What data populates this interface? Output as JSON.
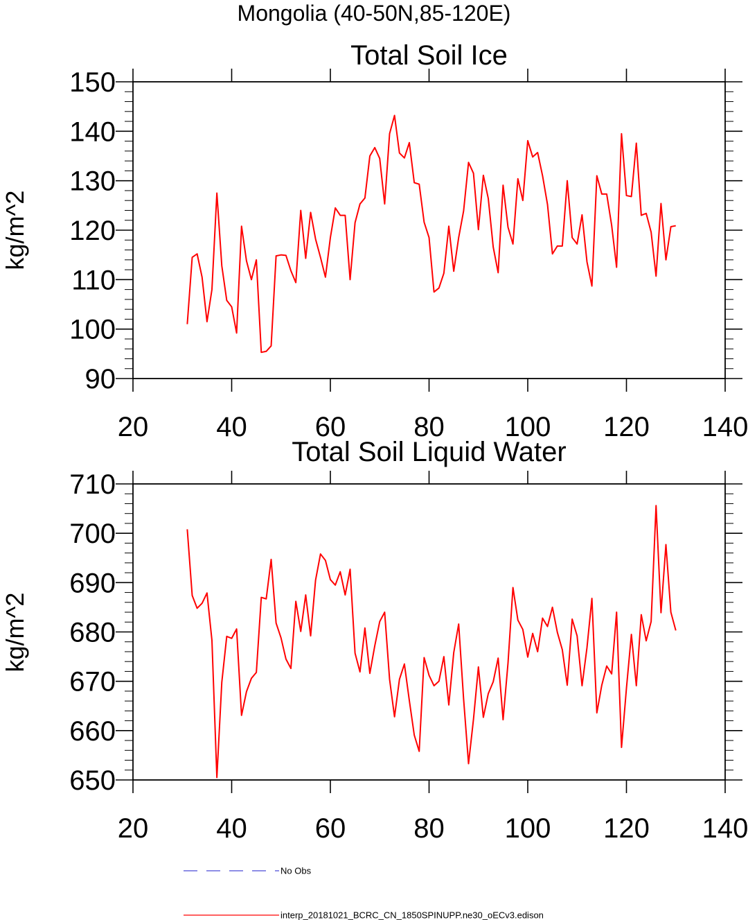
{
  "page_title": "Mongolia (40-50N,85-120E)",
  "legend": {
    "entries": [
      {
        "label": "No Obs",
        "color": "#4a4ad8",
        "dash": true
      },
      {
        "label": "interp_20181021_BCRC_CN_1850SPINUPP.ne30_oECv3.edison",
        "color": "#ff0000",
        "dash": false
      }
    ]
  },
  "chart_data": [
    {
      "type": "line",
      "title": "Total Soil Ice",
      "ylabel": "kg/m^2",
      "xlabel": "",
      "xlim": [
        20,
        140
      ],
      "ylim": [
        90,
        150
      ],
      "xticks": [
        20,
        40,
        60,
        80,
        100,
        120,
        140
      ],
      "yticks": [
        90,
        100,
        110,
        120,
        130,
        140,
        150
      ],
      "grid": false,
      "series": [
        {
          "color": "#ff0000",
          "x": [
            31,
            32,
            33,
            34,
            35,
            36,
            37,
            38,
            39,
            40,
            41,
            42,
            43,
            44,
            45,
            46,
            47,
            48,
            49,
            50,
            51,
            52,
            53,
            54,
            55,
            56,
            57,
            58,
            59,
            60,
            61,
            62,
            63,
            64,
            65,
            66,
            67,
            68,
            69,
            70,
            71,
            72,
            73,
            74,
            75,
            76,
            77,
            78,
            79,
            80,
            81,
            82,
            83,
            84,
            85,
            86,
            87,
            88,
            89,
            90,
            91,
            92,
            93,
            94,
            95,
            96,
            97,
            98,
            99,
            100,
            101,
            102,
            103,
            104,
            105,
            106,
            107,
            108,
            109,
            110,
            111,
            112,
            113,
            114,
            115,
            116,
            117,
            118,
            119,
            120,
            121,
            122,
            123,
            124,
            125,
            126,
            127,
            128,
            129,
            130
          ],
          "values": [
            101,
            114.5,
            115.2,
            110.5,
            101.5,
            108,
            127.5,
            112.8,
            105.8,
            104.5,
            99.2,
            120.8,
            113.8,
            110,
            114,
            95.3,
            95.5,
            96.6,
            114.8,
            115,
            114.9,
            111.8,
            109.4,
            124,
            114.3,
            123.6,
            118.2,
            114.5,
            110.5,
            118.5,
            124.5,
            123,
            123,
            110,
            121.5,
            125.3,
            126.5,
            135,
            136.7,
            134.5,
            125.3,
            139.5,
            143.2,
            135.6,
            134.6,
            137.7,
            129.6,
            129.3,
            121.6,
            118.5,
            107.5,
            108.3,
            111.3,
            120.8,
            111.7,
            118.5,
            123.9,
            133.7,
            131.5,
            120.1,
            131.1,
            126.4,
            116.6,
            111.4,
            129.1,
            120.6,
            117.2,
            130.4,
            126,
            138.1,
            134.8,
            135.7,
            131,
            125.2,
            115.2,
            116.8,
            116.8,
            130,
            118.5,
            117.2,
            123.1,
            113.6,
            108.7,
            131,
            127.3,
            127.3,
            121,
            112.5,
            139.5,
            127,
            126.8,
            137.6,
            123,
            123.4,
            119.6,
            110.7,
            125.4,
            114,
            120.7,
            120.9
          ]
        }
      ]
    },
    {
      "type": "line",
      "title": "Total Soil Liquid Water",
      "ylabel": "kg/m^2",
      "xlabel": "",
      "xlim": [
        20,
        140
      ],
      "ylim": [
        650,
        710
      ],
      "xticks": [
        20,
        40,
        60,
        80,
        100,
        120,
        140
      ],
      "yticks": [
        650,
        660,
        670,
        680,
        690,
        700,
        710
      ],
      "grid": false,
      "series": [
        {
          "color": "#ff0000",
          "x": [
            31,
            32,
            33,
            34,
            35,
            36,
            37,
            38,
            39,
            40,
            41,
            42,
            43,
            44,
            45,
            46,
            47,
            48,
            49,
            50,
            51,
            52,
            53,
            54,
            55,
            56,
            57,
            58,
            59,
            60,
            61,
            62,
            63,
            64,
            65,
            66,
            67,
            68,
            69,
            70,
            71,
            72,
            73,
            74,
            75,
            76,
            77,
            78,
            79,
            80,
            81,
            82,
            83,
            84,
            85,
            86,
            87,
            88,
            89,
            90,
            91,
            92,
            93,
            94,
            95,
            96,
            97,
            98,
            99,
            100,
            101,
            102,
            103,
            104,
            105,
            106,
            107,
            108,
            109,
            110,
            111,
            112,
            113,
            114,
            115,
            116,
            117,
            118,
            119,
            120,
            121,
            122,
            123,
            124,
            125,
            126,
            127,
            128,
            129,
            130
          ],
          "values": [
            700.8,
            687.4,
            684.8,
            685.8,
            687.9,
            678.3,
            650.5,
            669.8,
            679.1,
            678.7,
            680.6,
            663.1,
            667.9,
            670.6,
            671.8,
            687,
            686.7,
            694.7,
            681.8,
            678.8,
            674.5,
            672.6,
            686.2,
            680.1,
            687.5,
            679.2,
            690.5,
            695.8,
            694.5,
            690.6,
            689.5,
            692.2,
            687.5,
            692.7,
            675.7,
            671.9,
            680.8,
            671.6,
            677.2,
            682.1,
            684,
            670.4,
            662.8,
            670.4,
            673.5,
            666.1,
            659.1,
            655.8,
            674.8,
            671.2,
            669.1,
            670,
            675,
            665.2,
            675.8,
            681.6,
            666.4,
            653.3,
            662.3,
            672.9,
            662.7,
            667.5,
            669.9,
            674.7,
            662.2,
            673.7,
            689,
            682.4,
            680.5,
            674.9,
            679.7,
            676,
            682.8,
            681.1,
            685,
            679.9,
            676.4,
            669.2,
            682.6,
            679.2,
            669.1,
            676.8,
            686.8,
            663.6,
            669.2,
            673.1,
            671.5,
            684,
            656.6,
            668.6,
            679.5,
            669.1,
            683.5,
            678.2,
            682.1,
            705.6,
            683.9,
            697.7,
            684,
            680.3
          ]
        }
      ]
    }
  ]
}
